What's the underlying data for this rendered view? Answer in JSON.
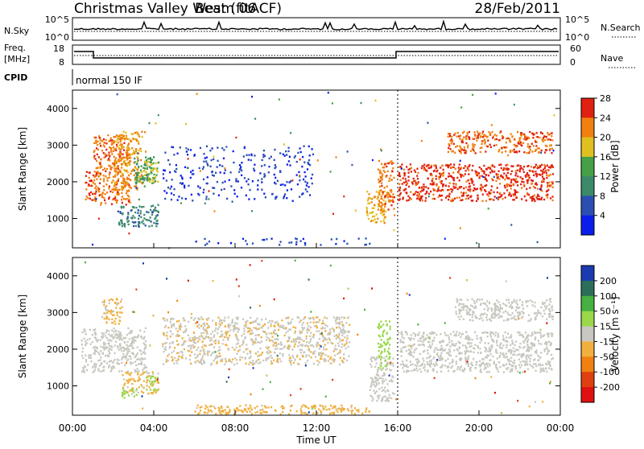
{
  "header": {
    "station": "Christmas Valley West (fitACF)",
    "beam": "Beam 06",
    "date": "28/Feb/2011"
  },
  "top_panels": {
    "nsky_label": "N.Sky",
    "nsearch_label": "N.Search",
    "nsky_ticks": [
      "10^5",
      "10^0"
    ],
    "nsearch_ticks": [
      "10^5",
      "10^0"
    ],
    "freq_label_1": "Freq.",
    "freq_label_2": "[MHz]",
    "freq_ticks": [
      "18",
      "8"
    ],
    "nave_label": "Nave",
    "nave_ticks": [
      "60",
      "0"
    ],
    "cpid_label": "CPID",
    "cpid_value": "normal 150 IF"
  },
  "chart_data": [
    {
      "type": "heatmap",
      "title": "",
      "xlabel": "Time UT",
      "ylabel": "Slant Range [km]",
      "xlim": [
        0,
        24
      ],
      "ylim": [
        200,
        4500
      ],
      "x_ticks": [
        "00:00",
        "04:00",
        "08:00",
        "12:00",
        "16:00",
        "20:00",
        "00:00"
      ],
      "y_ticks": [
        "1000",
        "2000",
        "3000",
        "4000"
      ],
      "colorbar": {
        "label": "Power [dB]",
        "ticks": [
          "4",
          "8",
          "12",
          "16",
          "20",
          "24",
          "28"
        ],
        "colors": [
          "#0a1eeb",
          "#2a4fb0",
          "#3b8a6a",
          "#46a046",
          "#e0c020",
          "#f08010",
          "#e02010"
        ],
        "range": [
          0,
          32
        ]
      },
      "regions": [
        {
          "t0": 0.6,
          "t1": 1.0,
          "r0": 1500,
          "r1": 2300,
          "level": 28
        },
        {
          "t0": 1.0,
          "t1": 2.8,
          "r0": 1400,
          "r1": 3300,
          "level": 26
        },
        {
          "t0": 2.0,
          "t1": 3.4,
          "r0": 1800,
          "r1": 3400,
          "level": 24
        },
        {
          "t0": 3.0,
          "t1": 4.0,
          "r0": 1900,
          "r1": 2700,
          "level": 14
        },
        {
          "t0": 3.4,
          "t1": 4.2,
          "r0": 2000,
          "r1": 2600,
          "level": 20
        },
        {
          "t0": 2.2,
          "t1": 4.2,
          "r0": 800,
          "r1": 1400,
          "level": 10
        },
        {
          "t0": 4.4,
          "t1": 11.8,
          "r0": 1500,
          "r1": 3000,
          "level": 5
        },
        {
          "t0": 6.0,
          "t1": 14.6,
          "r0": 300,
          "r1": 500,
          "level": 6
        },
        {
          "t0": 14.4,
          "t1": 15.4,
          "r0": 900,
          "r1": 1800,
          "level": 22
        },
        {
          "t0": 15.0,
          "t1": 15.8,
          "r0": 1200,
          "r1": 2600,
          "level": 26
        },
        {
          "t0": 16.0,
          "t1": 23.6,
          "r0": 1500,
          "r1": 2500,
          "level": 29
        },
        {
          "t0": 18.4,
          "t1": 23.6,
          "r0": 2800,
          "r1": 3400,
          "level": 27
        }
      ]
    },
    {
      "type": "heatmap",
      "title": "",
      "xlabel": "Time UT",
      "ylabel": "Slant Range [km]",
      "xlim": [
        0,
        24
      ],
      "ylim": [
        200,
        4500
      ],
      "x_ticks": [
        "00:00",
        "04:00",
        "08:00",
        "12:00",
        "16:00",
        "20:00",
        "00:00"
      ],
      "y_ticks": [
        "1000",
        "2000",
        "3000",
        "4000"
      ],
      "colorbar": {
        "label": "Velocity [m s⁻¹]",
        "ticks": [
          "200",
          "100",
          "50",
          "15",
          "-15",
          "-50",
          "-100",
          "-200"
        ],
        "colors": [
          "#1a3ab0",
          "#2c6e5a",
          "#46b040",
          "#9ad84a",
          "#c8c8c0",
          "#f0b040",
          "#f08010",
          "#e04010",
          "#e01010"
        ],
        "range": [
          -250,
          250
        ]
      },
      "regions": [
        {
          "t0": 0.4,
          "t1": 3.6,
          "r0": 1400,
          "r1": 2600,
          "level": 0
        },
        {
          "t0": 1.4,
          "t1": 2.4,
          "r0": 2700,
          "r1": 3400,
          "level": -40
        },
        {
          "t0": 2.4,
          "t1": 4.2,
          "r0": 800,
          "r1": 1400,
          "level": -40
        },
        {
          "t0": 2.4,
          "t1": 3.2,
          "r0": 700,
          "r1": 950,
          "level": 60
        },
        {
          "t0": 3.6,
          "t1": 4.2,
          "r0": 900,
          "r1": 1300,
          "level": 60
        },
        {
          "t0": 4.4,
          "t1": 13.6,
          "r0": 1600,
          "r1": 2900,
          "level": -20
        },
        {
          "t0": 6.0,
          "t1": 14.6,
          "r0": 250,
          "r1": 500,
          "level": -45
        },
        {
          "t0": 14.6,
          "t1": 15.8,
          "r0": 600,
          "r1": 1800,
          "level": 0
        },
        {
          "t0": 15.0,
          "t1": 15.6,
          "r0": 1500,
          "r1": 2800,
          "level": 60
        },
        {
          "t0": 16.0,
          "t1": 23.6,
          "r0": 1400,
          "r1": 2500,
          "level": 0
        },
        {
          "t0": 18.8,
          "t1": 23.6,
          "r0": 2800,
          "r1": 3400,
          "level": 0
        }
      ]
    }
  ]
}
